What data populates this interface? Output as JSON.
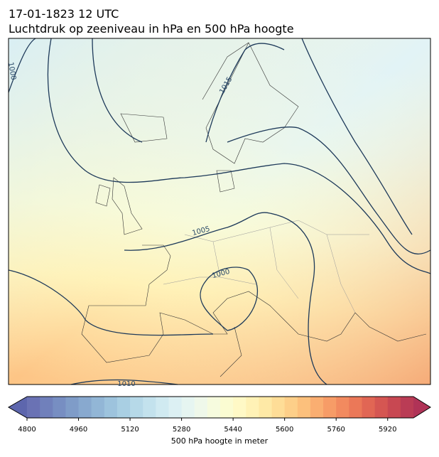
{
  "title": "17-01-1823 12 UTC",
  "subtitle": "Luchtdruk op zeeniveau in hPa en 500 hPa hoogte",
  "map": {
    "contour_labels": [
      "1000",
      "1015",
      "1005",
      "1000",
      "1010"
    ]
  },
  "colorbar": {
    "label": "500 hPa hoogte in meter",
    "range": [
      4800,
      6000
    ],
    "ticks": [
      4800,
      4960,
      5120,
      5280,
      5440,
      5600,
      5760,
      5920
    ],
    "under_color": "#5d66ad",
    "over_color": "#b03357",
    "colors": [
      "#6a72b4",
      "#7080bb",
      "#778ec2",
      "#7f9cc8",
      "#88a9cf",
      "#92b6d6",
      "#9dc3dd",
      "#a9cfe3",
      "#b6d9e8",
      "#c3e2ed",
      "#d0eaf1",
      "#dcf0f3",
      "#e6f5f1",
      "#eff8ea",
      "#f6fbde",
      "#fbfcd2",
      "#fff9c6",
      "#fff2b6",
      "#fee9a6",
      "#fedd97",
      "#fdcf89",
      "#fcc07c",
      "#faae71",
      "#f79c67",
      "#f28a5f",
      "#eb7858",
      "#e16654",
      "#d55652",
      "#c84852",
      "#ba3c55"
    ]
  }
}
